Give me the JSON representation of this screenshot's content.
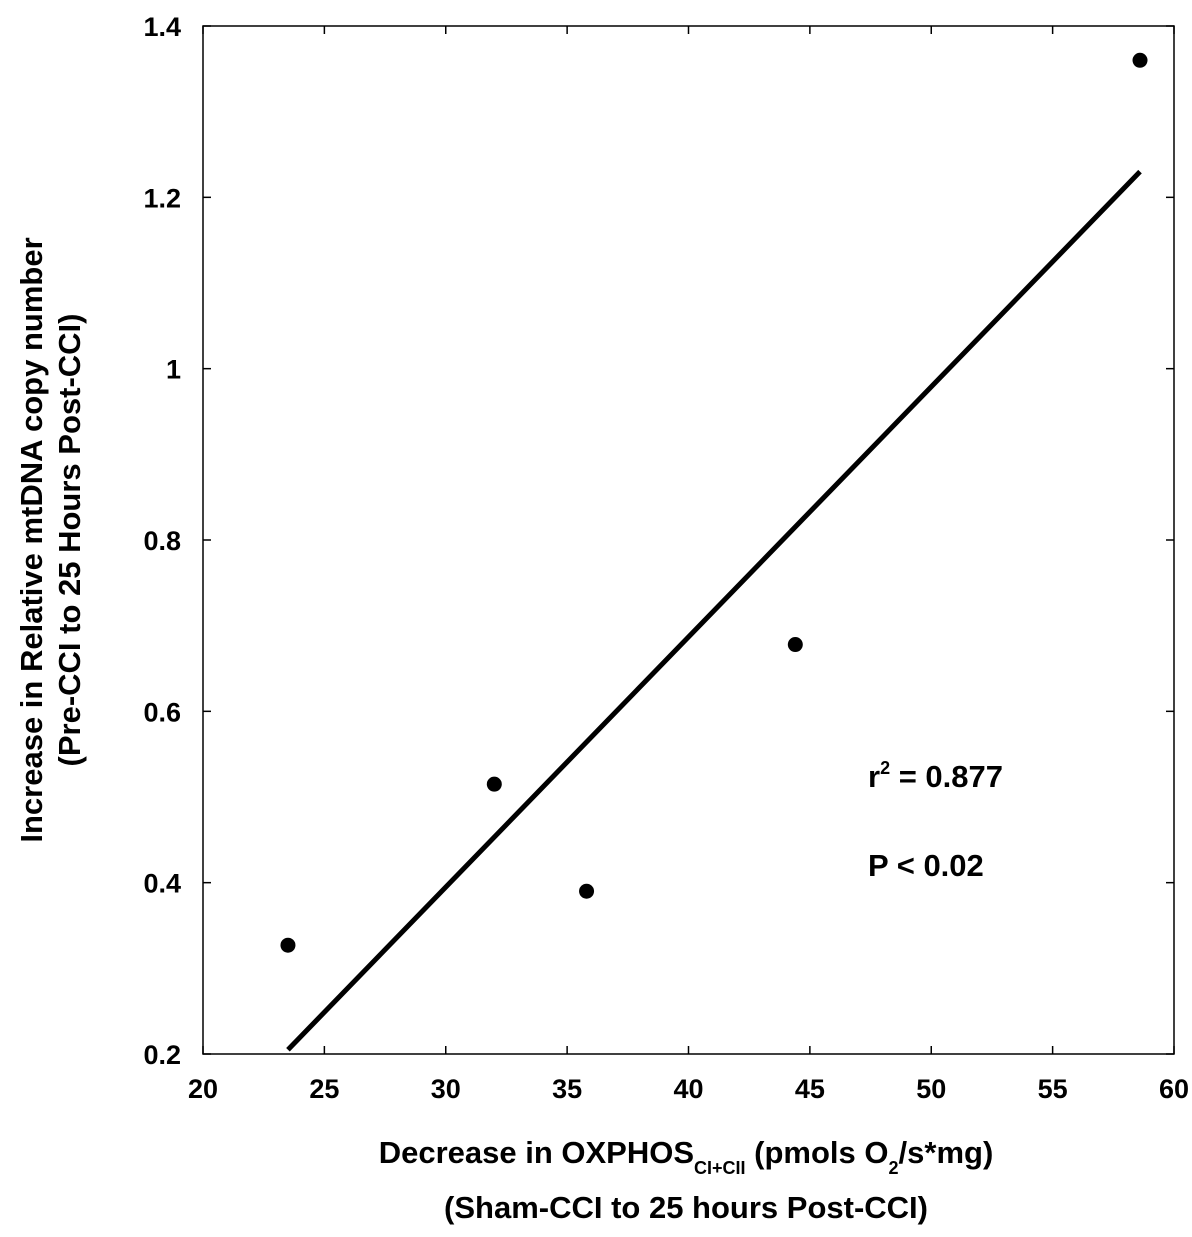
{
  "chart_data": {
    "type": "scatter",
    "title": "",
    "xlabel": {
      "main": "Decrease in OXPHOS",
      "main_subscript": "CI+CII",
      "unit_open": " (pmols O",
      "unit_subscript": "2",
      "unit_close": "/s*mg)",
      "line2": "(Sham-CCI to 25 hours Post-CCI)"
    },
    "ylabel": {
      "line1": "Increase in Relative mtDNA copy number",
      "line2": "(Pre-CCI to 25 Hours Post-CCI)"
    },
    "xlim": [
      20,
      60
    ],
    "ylim": [
      0.2,
      1.4
    ],
    "x_ticks": [
      "20",
      "25",
      "30",
      "35",
      "40",
      "45",
      "50",
      "55",
      "60"
    ],
    "y_ticks": [
      "0.2",
      "0.4",
      "0.6",
      "0.8",
      "1",
      "1.2",
      "1.4"
    ],
    "grid": false,
    "legend": false,
    "points": [
      {
        "x": 23.5,
        "y": 0.327
      },
      {
        "x": 32.0,
        "y": 0.515
      },
      {
        "x": 35.8,
        "y": 0.39
      },
      {
        "x": 44.4,
        "y": 0.678
      },
      {
        "x": 58.6,
        "y": 1.36
      }
    ],
    "fit_line": {
      "x": [
        23.5,
        58.6
      ],
      "y": [
        0.205,
        1.23
      ]
    },
    "annotations": {
      "r2_prefix": "r",
      "r2_superscript": "2",
      "r2_value": " = 0.877",
      "p_value": "P < 0.02"
    },
    "colors": {
      "marker": "#000000",
      "line": "#000000",
      "axis": "#000000"
    }
  }
}
